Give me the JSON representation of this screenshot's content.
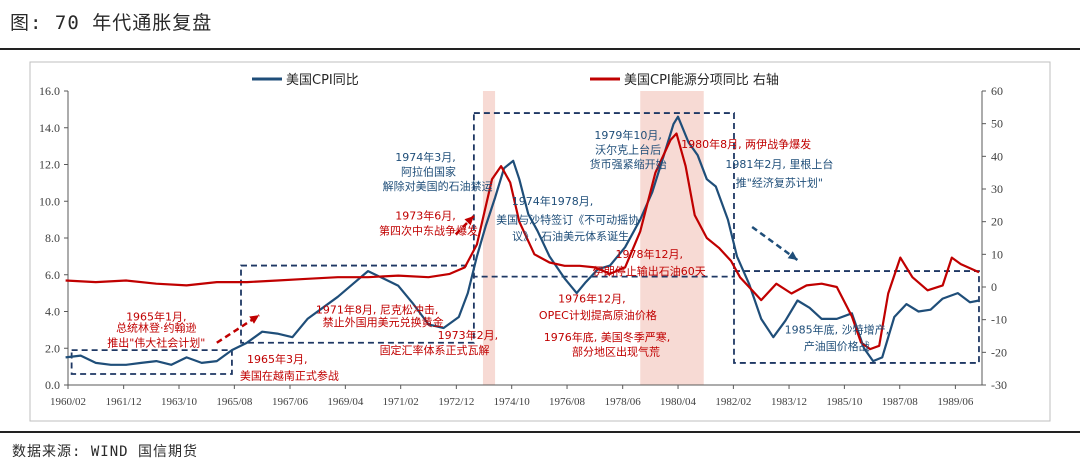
{
  "page": {
    "title": "图: 70 年代通胀复盘",
    "source": "数据来源: WIND 国信期货"
  },
  "colors": {
    "cpi": "#1f4e79",
    "energy": "#c00000",
    "shade": "#f6d3cd",
    "box": "#1f3864",
    "axis": "#595959",
    "annotation_blue": "#1f4e79",
    "annotation_red": "#c00000"
  },
  "chart_data": {
    "type": "line",
    "title": "",
    "x_tick_labels": [
      "1960/02",
      "1961/12",
      "1963/10",
      "1965/08",
      "1967/06",
      "1969/04",
      "1971/02",
      "1972/12",
      "1974/10",
      "1976/08",
      "1978/06",
      "1980/04",
      "1982/02",
      "1983/12",
      "1985/10",
      "1987/08",
      "1989/06"
    ],
    "x_ticks_year": [
      1960.08,
      1961.92,
      1963.75,
      1965.58,
      1967.42,
      1969.25,
      1971.08,
      1972.92,
      1974.75,
      1976.58,
      1978.42,
      1980.25,
      1982.08,
      1983.92,
      1985.75,
      1987.58,
      1989.42
    ],
    "xlim": [
      1960.08,
      1990.3
    ],
    "y_left": {
      "range": [
        0,
        16
      ],
      "ticks": [
        "0.0",
        "2.0",
        "4.0",
        "6.0",
        "8.0",
        "10.0",
        "12.0",
        "14.0",
        "16.0"
      ]
    },
    "y_right": {
      "range": [
        -30,
        60
      ],
      "ticks": [
        "-30",
        "-20",
        "-10",
        "0",
        "10",
        "20",
        "30",
        "40",
        "50",
        "60"
      ]
    },
    "legend": {
      "placement": "top",
      "entries": [
        "美国CPI同比",
        "美国CPI能源分项同比 右轴"
      ]
    },
    "series": [
      {
        "name": "美国CPI同比",
        "axis": "left",
        "x": [
          1960.0,
          1960.5,
          1961.0,
          1961.5,
          1962.0,
          1962.5,
          1963.0,
          1963.5,
          1964.0,
          1964.5,
          1965.0,
          1965.5,
          1966.0,
          1966.5,
          1967.0,
          1967.5,
          1968.0,
          1968.5,
          1969.0,
          1969.5,
          1970.0,
          1970.5,
          1971.0,
          1971.5,
          1972.0,
          1972.5,
          1973.0,
          1973.3,
          1973.6,
          1973.9,
          1974.2,
          1974.5,
          1974.8,
          1975.0,
          1975.3,
          1975.6,
          1976.0,
          1976.5,
          1976.9,
          1977.2,
          1977.6,
          1978.0,
          1978.5,
          1979.0,
          1979.4,
          1979.8,
          1980.1,
          1980.25,
          1980.6,
          1980.9,
          1981.2,
          1981.5,
          1981.9,
          1982.2,
          1982.6,
          1983.0,
          1983.4,
          1983.8,
          1984.2,
          1984.6,
          1985.0,
          1985.5,
          1986.0,
          1986.4,
          1986.7,
          1987.0,
          1987.4,
          1987.8,
          1988.2,
          1988.6,
          1989.0,
          1989.5,
          1989.9,
          1990.2
        ],
        "y": [
          1.5,
          1.6,
          1.2,
          1.1,
          1.1,
          1.2,
          1.3,
          1.1,
          1.5,
          1.2,
          1.3,
          1.9,
          2.3,
          2.9,
          2.8,
          2.6,
          3.6,
          4.2,
          4.8,
          5.5,
          6.2,
          5.8,
          5.4,
          4.4,
          3.3,
          3.1,
          3.7,
          5.0,
          7.0,
          8.7,
          10.2,
          11.8,
          12.2,
          11.2,
          9.3,
          8.4,
          7.0,
          5.8,
          5.0,
          5.6,
          6.3,
          6.5,
          7.5,
          9.0,
          10.5,
          12.6,
          14.2,
          14.6,
          13.2,
          12.5,
          11.2,
          10.8,
          9.0,
          7.0,
          5.5,
          3.6,
          2.6,
          3.5,
          4.6,
          4.2,
          3.6,
          3.6,
          3.9,
          2.0,
          1.3,
          1.5,
          3.7,
          4.4,
          4.0,
          4.1,
          4.7,
          5.0,
          4.5,
          4.6
        ]
      },
      {
        "name": "美国CPI能源分项同比 右轴",
        "axis": "right",
        "x": [
          1960.0,
          1961.0,
          1962.0,
          1963.0,
          1964.0,
          1965.0,
          1966.0,
          1967.0,
          1968.0,
          1969.0,
          1970.0,
          1971.0,
          1972.0,
          1972.7,
          1973.2,
          1973.6,
          1973.9,
          1974.1,
          1974.4,
          1974.7,
          1975.0,
          1975.5,
          1976.0,
          1976.5,
          1977.0,
          1977.5,
          1978.0,
          1978.5,
          1979.0,
          1979.5,
          1980.0,
          1980.2,
          1980.5,
          1980.8,
          1981.2,
          1981.6,
          1982.0,
          1982.3,
          1982.7,
          1983.0,
          1983.5,
          1984.0,
          1984.5,
          1985.0,
          1985.5,
          1986.0,
          1986.3,
          1986.6,
          1986.9,
          1987.2,
          1987.6,
          1988.0,
          1988.5,
          1989.0,
          1989.3,
          1989.6,
          1990.2
        ],
        "y": [
          2.0,
          1.5,
          2.0,
          1.0,
          0.5,
          1.5,
          1.5,
          2.0,
          2.5,
          3.0,
          3.0,
          3.5,
          3.0,
          4.0,
          6.0,
          13.0,
          25.0,
          33.0,
          37.0,
          32.0,
          20.0,
          10.0,
          7.5,
          6.5,
          6.5,
          6.0,
          4.0,
          6.0,
          17.0,
          35.0,
          45.0,
          47.0,
          37.0,
          22.0,
          15.0,
          12.0,
          8.0,
          3.0,
          -1.0,
          -4.0,
          1.0,
          -2.0,
          0.5,
          1.0,
          0.0,
          -9.0,
          -17.0,
          -19.0,
          -18.0,
          -2.0,
          9.0,
          3.0,
          -1.0,
          0.5,
          9.0,
          7.0,
          4.5
        ]
      }
    ],
    "shaded_spans": [
      [
        1973.8,
        1974.2
      ],
      [
        1979.0,
        1981.1
      ]
    ],
    "dashed_boxes": [
      {
        "x": [
          1960.2,
          1965.5
        ],
        "y": [
          0.6,
          1.9
        ]
      },
      {
        "x": [
          1965.8,
          1973.5
        ],
        "y": [
          2.3,
          6.5
        ]
      },
      {
        "x": [
          1973.5,
          1982.1
        ],
        "y": [
          5.9,
          14.8
        ]
      },
      {
        "x": [
          1982.1,
          1990.2
        ],
        "y": [
          1.2,
          6.2
        ]
      }
    ],
    "annotations": [
      {
        "text": "1965年1月,",
        "x": 1963.0,
        "y": 3.5,
        "color": "red"
      },
      {
        "text": "总统林登·约翰逊",
        "x": 1963.0,
        "y": 2.9,
        "color": "red"
      },
      {
        "text": "推出\"伟大社会计划\"",
        "x": 1963.0,
        "y": 2.1,
        "color": "red"
      },
      {
        "text": "1965年3月,",
        "x": 1967.0,
        "y": 1.2,
        "color": "red"
      },
      {
        "text": "美国在越南正式参战",
        "x": 1967.4,
        "y": 0.3,
        "color": "red"
      },
      {
        "text": "1971年8月, 尼克松冲击,",
        "x": 1970.3,
        "y": 3.9,
        "color": "red"
      },
      {
        "text": "禁止外国用美元兑换黄金",
        "x": 1970.5,
        "y": 3.2,
        "color": "red"
      },
      {
        "text": "1973年2月,",
        "x": 1973.3,
        "y": 2.5,
        "color": "red"
      },
      {
        "text": "固定汇率体系正式瓦解",
        "x": 1972.2,
        "y": 1.7,
        "color": "red"
      },
      {
        "text": "1973年6月,",
        "x": 1971.9,
        "y": 9.0,
        "color": "red"
      },
      {
        "text": "第四次中东战争爆发",
        "x": 1972.0,
        "y": 8.2,
        "color": "red"
      },
      {
        "text": "1974年3月,",
        "x": 1971.9,
        "y": 12.2,
        "color": "blue"
      },
      {
        "text": "阿拉伯国家",
        "x": 1972.0,
        "y": 11.4,
        "color": "blue"
      },
      {
        "text": "解除对美国的石油禁运",
        "x": 1972.3,
        "y": 10.6,
        "color": "blue"
      },
      {
        "text": "1974年1978月,",
        "x": 1976.1,
        "y": 9.8,
        "color": "blue"
      },
      {
        "text": "美国与沙特签订《不可动摇协",
        "x": 1976.6,
        "y": 8.8,
        "color": "blue"
      },
      {
        "text": "议》, 石油美元体系诞生",
        "x": 1976.7,
        "y": 7.9,
        "color": "blue"
      },
      {
        "text": "1976年12月,",
        "x": 1977.4,
        "y": 4.5,
        "color": "red"
      },
      {
        "text": "OPEC计划提高原油价格",
        "x": 1977.6,
        "y": 3.6,
        "color": "red"
      },
      {
        "text": "1976年底, 美国冬季严寒,",
        "x": 1977.9,
        "y": 2.4,
        "color": "red"
      },
      {
        "text": "部分地区出现气荒",
        "x": 1978.2,
        "y": 1.6,
        "color": "red"
      },
      {
        "text": "1978年12月,",
        "x": 1979.3,
        "y": 6.9,
        "color": "red"
      },
      {
        "text": "伊朗停止输出石油60天",
        "x": 1979.3,
        "y": 6.0,
        "color": "red"
      },
      {
        "text": "1979年10月,",
        "x": 1978.6,
        "y": 13.4,
        "color": "blue"
      },
      {
        "text": "沃尔克上台后",
        "x": 1978.6,
        "y": 12.6,
        "color": "blue"
      },
      {
        "text": "货币强紧缩开始",
        "x": 1978.6,
        "y": 11.8,
        "color": "blue"
      },
      {
        "text": "1980年8月, 两伊战争爆发",
        "x": 1982.5,
        "y": 12.9,
        "color": "red"
      },
      {
        "text": "1981年2月, 里根上台",
        "x": 1983.6,
        "y": 11.8,
        "color": "blue"
      },
      {
        "text": "推\"经济复苏计划\"",
        "x": 1983.6,
        "y": 10.8,
        "color": "blue"
      },
      {
        "text": "1985年底, 沙特增产,",
        "x": 1985.5,
        "y": 2.8,
        "color": "blue"
      },
      {
        "text": "产油国价格战",
        "x": 1985.5,
        "y": 1.9,
        "color": "blue"
      }
    ],
    "arrows": [
      {
        "from": [
          1965.0,
          2.3
        ],
        "to": [
          1966.4,
          3.8
        ],
        "color": "red"
      },
      {
        "from": [
          1972.9,
          8.2
        ],
        "to": [
          1973.5,
          9.2
        ],
        "color": "red"
      },
      {
        "from": [
          1982.7,
          8.6
        ],
        "to": [
          1984.2,
          6.8
        ],
        "color": "blue"
      }
    ],
    "grid": false
  }
}
